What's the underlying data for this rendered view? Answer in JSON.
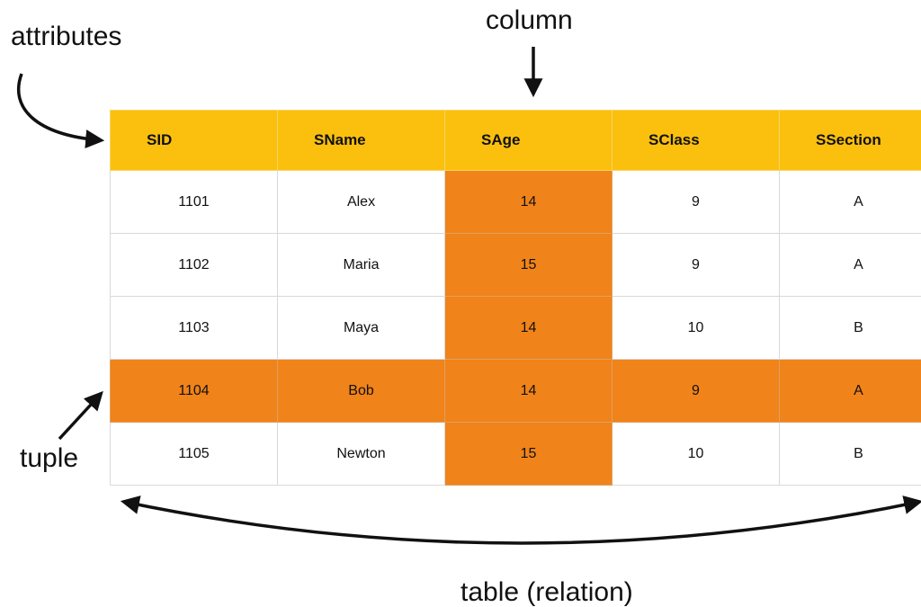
{
  "labels": {
    "attributes": "attributes",
    "column": "column",
    "tuple": "tuple",
    "table": "table (relation)"
  },
  "table": {
    "headers": [
      "SID",
      "SName",
      "SAge",
      "SClass",
      "SSection"
    ],
    "rows": [
      [
        "1101",
        "Alex",
        "14",
        "9",
        "A"
      ],
      [
        "1102",
        "Maria",
        "15",
        "9",
        "A"
      ],
      [
        "1103",
        "Maya",
        "14",
        "10",
        "B"
      ],
      [
        "1104",
        "Bob",
        "14",
        "9",
        "A"
      ],
      [
        "1105",
        "Newton",
        "15",
        "10",
        "B"
      ]
    ],
    "highlighted_column": "SAge",
    "highlighted_row": "1104"
  },
  "colors": {
    "header": "#fbc00e",
    "highlight": "#f0831a",
    "border": "#d9d9d9"
  }
}
